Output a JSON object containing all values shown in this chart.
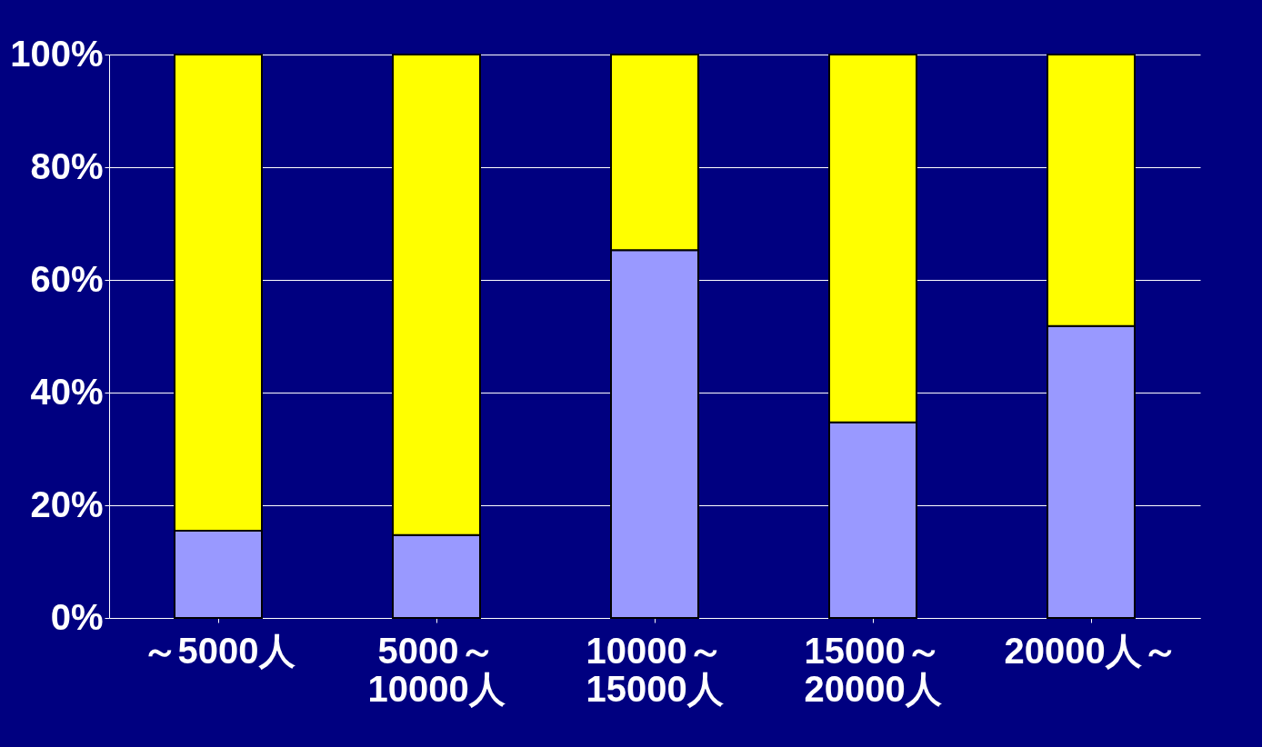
{
  "chart_data": {
    "type": "bar",
    "stacked": true,
    "categories": [
      "～5000人",
      "5000～\n10000人",
      "10000～\n15000人",
      "15000～\n20000人",
      "20000人～"
    ],
    "series": [
      {
        "color": "#9999ff",
        "values": [
          15.5,
          14.7,
          65.3,
          34.7,
          51.8
        ]
      },
      {
        "color": "#ffff00",
        "values": [
          84.5,
          85.3,
          34.7,
          65.3,
          48.2
        ]
      }
    ],
    "ylim": [
      0,
      100
    ],
    "yticks": [
      {
        "value": 0,
        "label": "0%"
      },
      {
        "value": 20,
        "label": "20%"
      },
      {
        "value": 40,
        "label": "40%"
      },
      {
        "value": 60,
        "label": "60%"
      },
      {
        "value": 80,
        "label": "80%"
      },
      {
        "value": 100,
        "label": "100%"
      }
    ],
    "grid": "y"
  }
}
